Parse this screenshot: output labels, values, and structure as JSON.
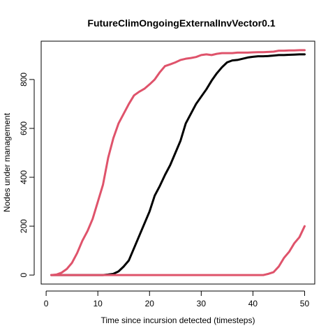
{
  "chart_data": {
    "type": "line",
    "title": "FutureClimOngoingExternalInvVector0.1",
    "xlabel": "Time since incursion detected (timesteps)",
    "ylabel": "Nodes under management",
    "xlim": [
      1,
      50
    ],
    "ylim": [
      0,
      920
    ],
    "xticks": [
      0,
      10,
      20,
      30,
      40,
      50
    ],
    "yticks": [
      0,
      200,
      400,
      600,
      800
    ],
    "grid": false,
    "legend": "none",
    "series": [
      {
        "color": "#000000",
        "x": [
          1,
          2,
          3,
          4,
          5,
          6,
          7,
          8,
          9,
          10,
          11,
          12,
          13,
          14,
          15,
          16,
          17,
          18,
          19,
          20,
          21,
          22,
          23,
          24,
          25,
          26,
          27,
          28,
          29,
          30,
          31,
          32,
          33,
          34,
          35,
          36,
          37,
          38,
          39,
          40,
          41,
          42,
          43,
          44,
          45,
          46,
          47,
          48,
          49,
          50
        ],
        "y": [
          0,
          0,
          0,
          0,
          0,
          0,
          0,
          0,
          0,
          0,
          0,
          2,
          5,
          15,
          35,
          60,
          110,
          160,
          210,
          260,
          325,
          365,
          410,
          450,
          500,
          550,
          620,
          660,
          700,
          730,
          760,
          795,
          825,
          850,
          870,
          878,
          880,
          885,
          890,
          893,
          895,
          895,
          896,
          898,
          900,
          900,
          901,
          902,
          903,
          903
        ]
      },
      {
        "color": "#DF536B",
        "x": [
          1,
          2,
          3,
          4,
          5,
          6,
          7,
          8,
          9,
          10,
          11,
          12,
          13,
          14,
          15,
          16,
          17,
          18,
          19,
          20,
          21,
          22,
          23,
          24,
          25,
          26,
          27,
          28,
          29,
          30,
          31,
          32,
          33,
          34,
          35,
          36,
          37,
          38,
          39,
          40,
          41,
          42,
          43,
          44,
          45,
          46,
          47,
          48,
          49,
          50
        ],
        "y": [
          0,
          2,
          10,
          25,
          50,
          90,
          140,
          180,
          230,
          300,
          370,
          480,
          560,
          620,
          660,
          700,
          735,
          750,
          762,
          780,
          800,
          830,
          855,
          862,
          870,
          880,
          885,
          888,
          892,
          900,
          903,
          900,
          905,
          908,
          908,
          908,
          910,
          910,
          910,
          911,
          912,
          912,
          913,
          914,
          918,
          918,
          919,
          919,
          920,
          920
        ]
      },
      {
        "color": "#DF536B",
        "x": [
          1,
          2,
          3,
          4,
          5,
          6,
          7,
          8,
          9,
          10,
          11,
          12,
          13,
          14,
          15,
          16,
          17,
          18,
          19,
          20,
          21,
          22,
          23,
          24,
          25,
          26,
          27,
          28,
          29,
          30,
          31,
          32,
          33,
          34,
          35,
          36,
          37,
          38,
          39,
          40,
          41,
          42,
          43,
          44,
          45,
          46,
          47,
          48,
          49,
          50
        ],
        "y": [
          0,
          0,
          0,
          0,
          0,
          0,
          0,
          0,
          0,
          0,
          0,
          0,
          0,
          0,
          0,
          0,
          0,
          0,
          0,
          0,
          0,
          0,
          0,
          0,
          0,
          0,
          0,
          0,
          0,
          0,
          0,
          0,
          0,
          0,
          0,
          0,
          0,
          0,
          0,
          0,
          0,
          0,
          5,
          12,
          35,
          70,
          95,
          130,
          155,
          200
        ]
      }
    ]
  }
}
